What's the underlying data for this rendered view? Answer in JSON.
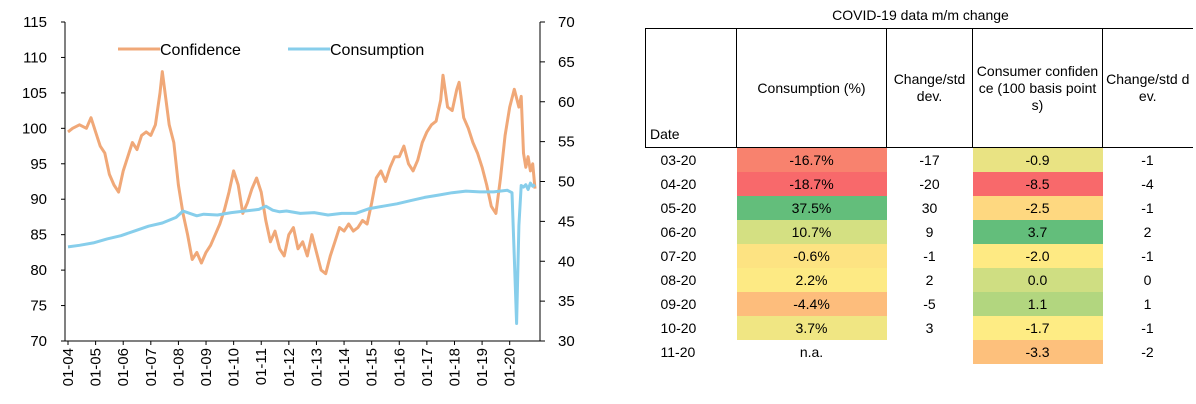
{
  "chart_data": [
    {
      "type": "line",
      "title": "",
      "xlabel": "",
      "ylabel": "",
      "x_tick_labels": [
        "01-04",
        "01-05",
        "01-06",
        "01-07",
        "01-08",
        "01-09",
        "01-10",
        "01-11",
        "01-12",
        "01-13",
        "01-14",
        "01-15",
        "01-16",
        "01-17",
        "01-18",
        "01-19",
        "01-20"
      ],
      "x_range": [
        "2004-01",
        "2020-12"
      ],
      "y_left": {
        "range": [
          70,
          115
        ],
        "ticks": [
          "115",
          "110",
          "105",
          "100",
          "95",
          "90",
          "85",
          "80",
          "75",
          "70"
        ]
      },
      "y_right": {
        "range": [
          30,
          70
        ],
        "ticks": [
          "70",
          "65",
          "60",
          "55",
          "50",
          "45",
          "40",
          "35",
          "30"
        ]
      },
      "legend_position": "top-left",
      "grid": false,
      "series": [
        {
          "name": "Confidence",
          "axis": "left",
          "color": "#f0a878",
          "points": [
            [
              "2004-01",
              99.5
            ],
            [
              "2004-03",
              100.0
            ],
            [
              "2004-06",
              100.5
            ],
            [
              "2004-09",
              100.0
            ],
            [
              "2004-11",
              101.5
            ],
            [
              "2005-01",
              99.5
            ],
            [
              "2005-03",
              97.5
            ],
            [
              "2005-05",
              96.5
            ],
            [
              "2005-07",
              93.5
            ],
            [
              "2005-09",
              92.0
            ],
            [
              "2005-11",
              91.0
            ],
            [
              "2006-01",
              94.0
            ],
            [
              "2006-03",
              96.0
            ],
            [
              "2006-05",
              98.0
            ],
            [
              "2006-07",
              97.0
            ],
            [
              "2006-09",
              99.0
            ],
            [
              "2006-11",
              99.5
            ],
            [
              "2007-01",
              99.0
            ],
            [
              "2007-03",
              100.5
            ],
            [
              "2007-05",
              105.0
            ],
            [
              "2007-06",
              108.0
            ],
            [
              "2007-07",
              105.5
            ],
            [
              "2007-09",
              100.5
            ],
            [
              "2007-11",
              98.0
            ],
            [
              "2008-01",
              92.0
            ],
            [
              "2008-03",
              88.0
            ],
            [
              "2008-05",
              85.0
            ],
            [
              "2008-07",
              81.5
            ],
            [
              "2008-09",
              82.5
            ],
            [
              "2008-11",
              81.0
            ],
            [
              "2009-01",
              82.5
            ],
            [
              "2009-03",
              83.5
            ],
            [
              "2009-05",
              85.0
            ],
            [
              "2009-07",
              86.5
            ],
            [
              "2009-09",
              88.5
            ],
            [
              "2009-11",
              91.0
            ],
            [
              "2010-01",
              94.0
            ],
            [
              "2010-03",
              92.0
            ],
            [
              "2010-05",
              88.0
            ],
            [
              "2010-07",
              89.5
            ],
            [
              "2010-09",
              91.5
            ],
            [
              "2010-11",
              93.0
            ],
            [
              "2011-01",
              91.0
            ],
            [
              "2011-03",
              87.0
            ],
            [
              "2011-05",
              84.0
            ],
            [
              "2011-07",
              85.5
            ],
            [
              "2011-09",
              83.0
            ],
            [
              "2011-11",
              82.0
            ],
            [
              "2012-01",
              85.0
            ],
            [
              "2012-03",
              86.0
            ],
            [
              "2012-05",
              83.0
            ],
            [
              "2012-07",
              84.0
            ],
            [
              "2012-09",
              82.0
            ],
            [
              "2012-11",
              85.0
            ],
            [
              "2013-01",
              82.5
            ],
            [
              "2013-03",
              80.0
            ],
            [
              "2013-05",
              79.5
            ],
            [
              "2013-07",
              82.0
            ],
            [
              "2013-09",
              84.0
            ],
            [
              "2013-11",
              86.0
            ],
            [
              "2014-01",
              85.5
            ],
            [
              "2014-03",
              86.5
            ],
            [
              "2014-05",
              85.5
            ],
            [
              "2014-07",
              86.0
            ],
            [
              "2014-09",
              87.0
            ],
            [
              "2014-11",
              86.5
            ],
            [
              "2015-01",
              89.5
            ],
            [
              "2015-03",
              93.0
            ],
            [
              "2015-05",
              94.0
            ],
            [
              "2015-07",
              92.5
            ],
            [
              "2015-09",
              94.5
            ],
            [
              "2015-11",
              96.0
            ],
            [
              "2016-01",
              96.0
            ],
            [
              "2016-03",
              97.5
            ],
            [
              "2016-05",
              95.0
            ],
            [
              "2016-07",
              94.0
            ],
            [
              "2016-09",
              95.5
            ],
            [
              "2016-11",
              98.0
            ],
            [
              "2017-01",
              99.5
            ],
            [
              "2017-03",
              100.5
            ],
            [
              "2017-05",
              101.0
            ],
            [
              "2017-07",
              104.0
            ],
            [
              "2017-08",
              107.5
            ],
            [
              "2017-10",
              103.0
            ],
            [
              "2017-12",
              102.5
            ],
            [
              "2018-02",
              105.5
            ],
            [
              "2018-03",
              106.5
            ],
            [
              "2018-05",
              101.5
            ],
            [
              "2018-07",
              100.0
            ],
            [
              "2018-09",
              98.0
            ],
            [
              "2018-11",
              96.5
            ],
            [
              "2019-01",
              94.5
            ],
            [
              "2019-03",
              92.0
            ],
            [
              "2019-05",
              89.0
            ],
            [
              "2019-07",
              88.0
            ],
            [
              "2019-09",
              93.0
            ],
            [
              "2019-11",
              99.0
            ],
            [
              "2020-01",
              103.0
            ],
            [
              "2020-03",
              105.5
            ],
            [
              "2020-05",
              103.0
            ],
            [
              "2020-06",
              104.5
            ],
            [
              "2020-07",
              96.5
            ],
            [
              "2020-08",
              94.5
            ],
            [
              "2020-09",
              96.0
            ],
            [
              "2020-10",
              94.0
            ],
            [
              "2020-11",
              95.0
            ],
            [
              "2020-12",
              91.5
            ]
          ]
        },
        {
          "name": "Consumption",
          "axis": "right",
          "color": "#87ceeb",
          "points": [
            [
              "2004-01",
              41.8
            ],
            [
              "2004-06",
              42.0
            ],
            [
              "2004-12",
              42.3
            ],
            [
              "2005-06",
              42.8
            ],
            [
              "2005-12",
              43.2
            ],
            [
              "2006-06",
              43.8
            ],
            [
              "2006-12",
              44.4
            ],
            [
              "2007-06",
              44.8
            ],
            [
              "2007-12",
              45.5
            ],
            [
              "2008-03",
              46.3
            ],
            [
              "2008-06",
              46.0
            ],
            [
              "2008-09",
              45.7
            ],
            [
              "2008-12",
              45.9
            ],
            [
              "2009-06",
              45.8
            ],
            [
              "2009-12",
              46.1
            ],
            [
              "2010-06",
              46.3
            ],
            [
              "2010-12",
              46.5
            ],
            [
              "2011-03",
              46.9
            ],
            [
              "2011-06",
              46.4
            ],
            [
              "2011-09",
              46.2
            ],
            [
              "2011-12",
              46.3
            ],
            [
              "2012-06",
              46.0
            ],
            [
              "2012-12",
              46.1
            ],
            [
              "2013-06",
              45.8
            ],
            [
              "2013-12",
              46.0
            ],
            [
              "2014-06",
              46.0
            ],
            [
              "2014-12",
              46.6
            ],
            [
              "2015-06",
              46.9
            ],
            [
              "2015-12",
              47.2
            ],
            [
              "2016-06",
              47.6
            ],
            [
              "2016-12",
              48.0
            ],
            [
              "2017-06",
              48.3
            ],
            [
              "2017-12",
              48.6
            ],
            [
              "2018-06",
              48.8
            ],
            [
              "2018-12",
              48.7
            ],
            [
              "2019-06",
              48.7
            ],
            [
              "2019-12",
              48.9
            ],
            [
              "2020-02",
              48.6
            ],
            [
              "2020-03",
              40.5
            ],
            [
              "2020-04",
              32.2
            ],
            [
              "2020-05",
              44.5
            ],
            [
              "2020-06",
              49.5
            ],
            [
              "2020-07",
              49.3
            ],
            [
              "2020-08",
              49.6
            ],
            [
              "2020-09",
              49.0
            ],
            [
              "2020-10",
              49.8
            ],
            [
              "2020-11",
              49.4
            ],
            [
              "2020-12",
              49.6
            ]
          ]
        }
      ]
    },
    {
      "type": "table",
      "title": "COVID-19 data m/m change",
      "columns": [
        "Date",
        "Consumption (%)",
        "Change/std dev.",
        "Consumer confidence (100 basis points)",
        "Change/std dev."
      ],
      "rows": [
        {
          "date": "03-20",
          "consumption": "-16.7%",
          "cons_sd": "-17",
          "confidence": "-0.9",
          "conf_sd": "-1",
          "cons_color": "#f8826e",
          "conf_color": "#e9e383"
        },
        {
          "date": "04-20",
          "consumption": "-18.7%",
          "cons_sd": "-20",
          "confidence": "-8.5",
          "conf_sd": "-4",
          "cons_color": "#f8696b",
          "conf_color": "#f8696b"
        },
        {
          "date": "05-20",
          "consumption": "37.5%",
          "cons_sd": "30",
          "confidence": "-2.5",
          "conf_sd": "-1",
          "cons_color": "#63be7b",
          "conf_color": "#fed880"
        },
        {
          "date": "06-20",
          "consumption": "10.7%",
          "cons_sd": "9",
          "confidence": "3.7",
          "conf_sd": "2",
          "cons_color": "#d4e082",
          "conf_color": "#63be7b"
        },
        {
          "date": "07-20",
          "consumption": "-0.6%",
          "cons_sd": "-1",
          "confidence": "-2.0",
          "conf_sd": "-1",
          "cons_color": "#fde382",
          "conf_color": "#feea83"
        },
        {
          "date": "08-20",
          "consumption": "2.2%",
          "cons_sd": "2",
          "confidence": "0.0",
          "conf_sd": "0",
          "cons_color": "#fdea84",
          "conf_color": "#cfde82"
        },
        {
          "date": "09-20",
          "consumption": "-4.4%",
          "cons_sd": "-5",
          "confidence": "1.1",
          "conf_sd": "1",
          "cons_color": "#fdbd7c",
          "conf_color": "#b2d67f"
        },
        {
          "date": "10-20",
          "consumption": "3.7%",
          "cons_sd": "3",
          "confidence": "-1.7",
          "conf_sd": "-1",
          "cons_color": "#f0e683",
          "conf_color": "#feec84"
        },
        {
          "date": "11-20",
          "consumption": "n.a.",
          "cons_sd": "",
          "confidence": "-3.3",
          "conf_sd": "-2",
          "cons_color": "",
          "conf_color": "#fdc07c"
        }
      ]
    }
  ]
}
